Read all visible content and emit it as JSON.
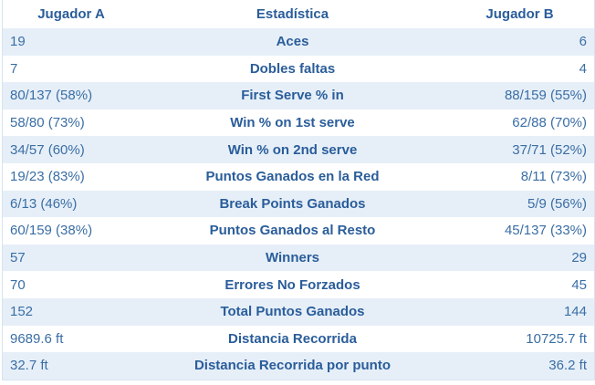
{
  "header": {
    "player_a": "Jugador A",
    "stat": "Estadística",
    "player_b": "Jugador B"
  },
  "rows": [
    {
      "a": "19",
      "stat": "Aces",
      "b": "6"
    },
    {
      "a": "7",
      "stat": "Dobles faltas",
      "b": "4"
    },
    {
      "a": "80/137 (58%)",
      "stat": "First Serve % in",
      "b": "88/159 (55%)"
    },
    {
      "a": "58/80 (73%)",
      "stat": "Win % on 1st serve",
      "b": "62/88 (70%)"
    },
    {
      "a": "34/57 (60%)",
      "stat": "Win % on 2nd serve",
      "b": "37/71 (52%)"
    },
    {
      "a": "19/23 (83%)",
      "stat": "Puntos Ganados en la Red",
      "b": "8/11 (73%)"
    },
    {
      "a": "6/13 (46%)",
      "stat": "Break Points Ganados",
      "b": "5/9 (56%)"
    },
    {
      "a": "60/159 (38%)",
      "stat": "Puntos Ganados al Resto",
      "b": "45/137 (33%)"
    },
    {
      "a": "57",
      "stat": "Winners",
      "b": "29"
    },
    {
      "a": "70",
      "stat": "Errores No Forzados",
      "b": "45"
    },
    {
      "a": "152",
      "stat": "Total Puntos Ganados",
      "b": "144"
    },
    {
      "a": "9689.6 ft",
      "stat": "Distancia Recorrida",
      "b": "10725.7 ft"
    },
    {
      "a": "32.7 ft",
      "stat": "Distancia Recorrida por punto",
      "b": "36.2 ft"
    }
  ],
  "colors": {
    "header_text": "#2a5d9a",
    "cell_text": "#3a6ea5",
    "row_alt_bg": "#e6eff8"
  }
}
